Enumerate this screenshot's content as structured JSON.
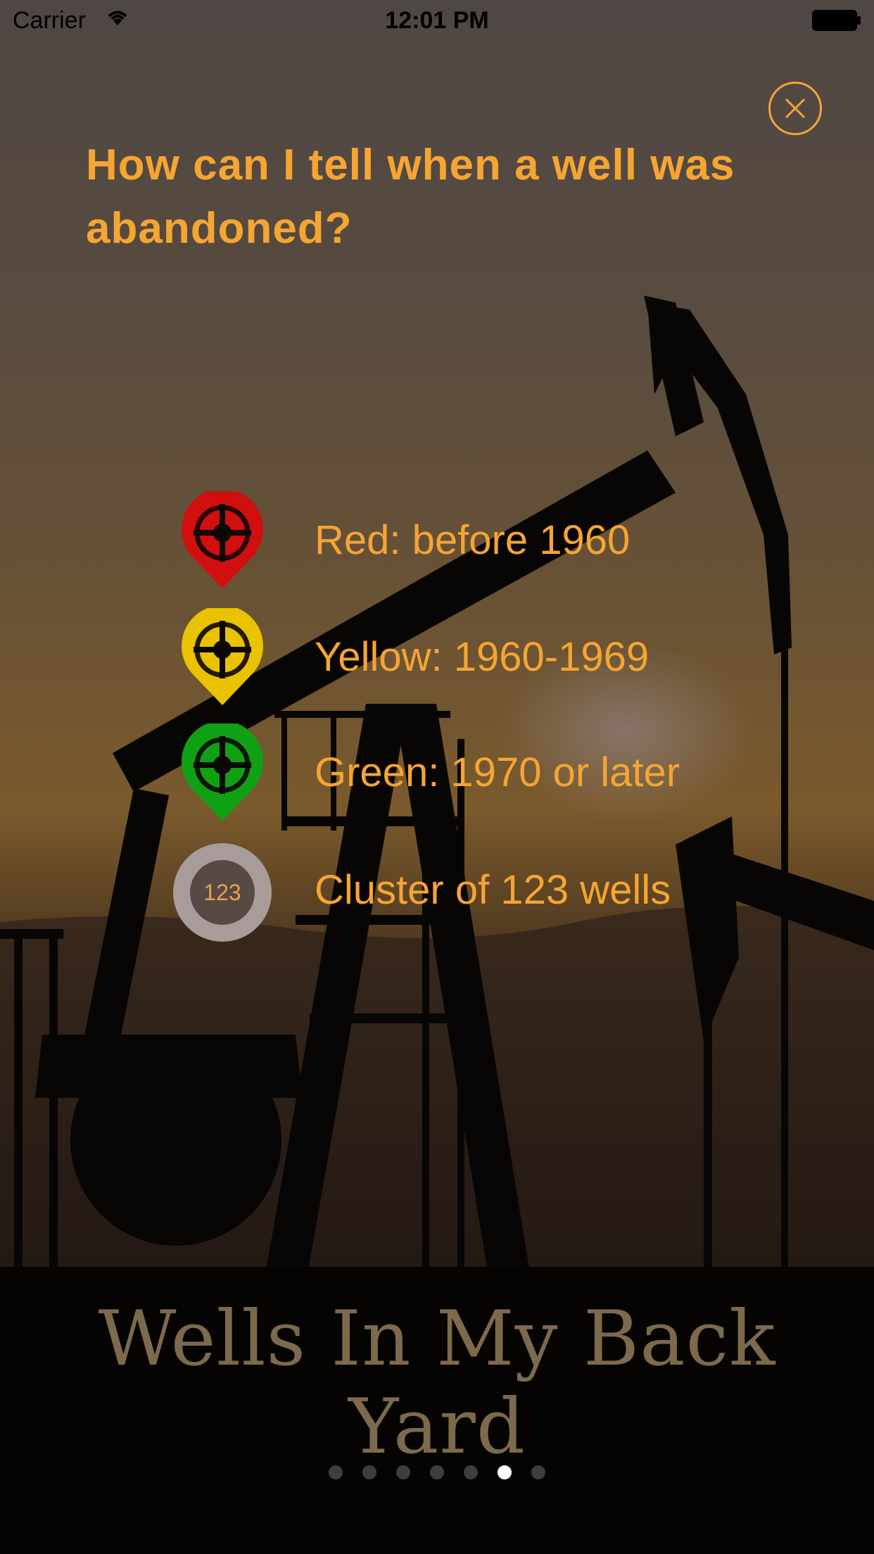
{
  "status_bar": {
    "carrier": "Carrier",
    "time": "12:01 PM"
  },
  "title": "How can I tell when a well was abandoned?",
  "legend": [
    {
      "label": "Red: before 1960",
      "color": "#d10f0f",
      "icon": "red-well-pin-icon"
    },
    {
      "label": "Yellow: 1960-1969",
      "color": "#e9c200",
      "icon": "yellow-well-pin-icon"
    },
    {
      "label": "Green: 1970 or later",
      "color": "#10a014",
      "icon": "green-well-pin-icon"
    },
    {
      "label": "Cluster of 123 wells",
      "icon": "cluster-marker-icon",
      "cluster_count": "123"
    }
  ],
  "brand": "Wells In My Back Yard",
  "pager": {
    "count": 7,
    "active_index": 5
  },
  "colors": {
    "accent": "#f6a532"
  }
}
